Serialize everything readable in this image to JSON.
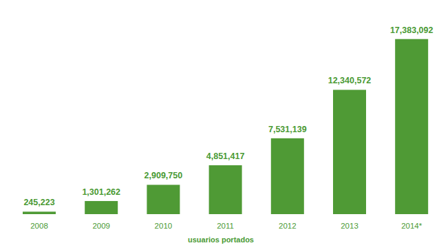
{
  "chart_data": {
    "type": "bar",
    "x_label": "usuarios portados",
    "categories": [
      "2008",
      "2009",
      "2010",
      "2011",
      "2012",
      "2013",
      "2014*"
    ],
    "values": [
      245223,
      1301262,
      2909750,
      4851417,
      7531139,
      12340572,
      17383092
    ],
    "value_labels": [
      "245,223",
      "1,301,262",
      "2,909,750",
      "4,851,417",
      "7,531,139",
      "12,340,572",
      "17,383,092"
    ],
    "color": "#4f9a35",
    "ylim": [
      0,
      17500000
    ],
    "grid": false,
    "data_labels": true,
    "tick_labels": "x"
  }
}
